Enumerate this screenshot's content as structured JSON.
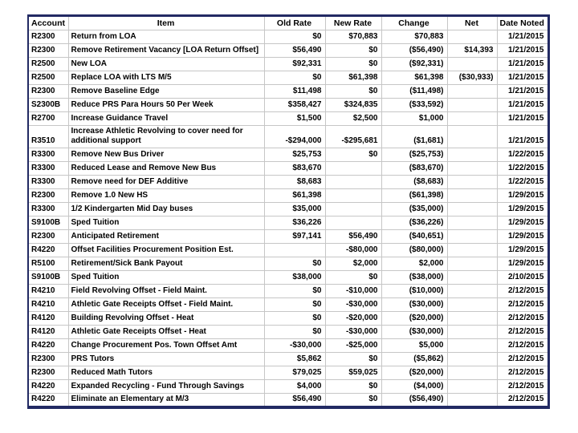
{
  "page": {
    "background": "#ffffff"
  },
  "table": {
    "title": "budget-adjustments-spreadsheet",
    "frame_color": "#222a63",
    "grid_color": "#c6c6c6",
    "text_color": "#000000",
    "negative_color": "#c00000",
    "columns": [
      {
        "key": "account",
        "label": "Account",
        "align": "left"
      },
      {
        "key": "item",
        "label": "Item",
        "align": "left"
      },
      {
        "key": "old_rate",
        "label": "Old Rate",
        "align": "right"
      },
      {
        "key": "new_rate",
        "label": "New Rate",
        "align": "right"
      },
      {
        "key": "change",
        "label": "Change",
        "align": "right"
      },
      {
        "key": "net",
        "label": "Net",
        "align": "right"
      },
      {
        "key": "date_noted",
        "label": "Date Noted",
        "align": "right"
      }
    ],
    "rows": [
      {
        "account": "R2300",
        "item": "Return from LOA",
        "old_rate": "$0",
        "new_rate": "$70,883",
        "change": "$70,883",
        "net": "",
        "date_noted": "1/21/2015"
      },
      {
        "account": "R2300",
        "item": "Remove Retirement Vacancy [LOA Return Offset]",
        "old_rate": "$56,490",
        "new_rate": "$0",
        "change": "($56,490)",
        "net": "$14,393",
        "date_noted": "1/21/2015"
      },
      {
        "account": "R2500",
        "item": "New LOA",
        "old_rate": "$92,331",
        "new_rate": "$0",
        "change": "($92,331)",
        "net": "",
        "date_noted": "1/21/2015"
      },
      {
        "account": "R2500",
        "item": "Replace LOA with LTS M/5",
        "old_rate": "$0",
        "new_rate": "$61,398",
        "change": "$61,398",
        "net": "($30,933)",
        "date_noted": "1/21/2015"
      },
      {
        "account": "R2300",
        "item": "Remove Baseline Edge",
        "old_rate": "$11,498",
        "new_rate": "$0",
        "change": "($11,498)",
        "net": "",
        "date_noted": "1/21/2015"
      },
      {
        "account": "S2300B",
        "item": "Reduce PRS Para Hours 50 Per Week",
        "old_rate": "$358,427",
        "new_rate": "$324,835",
        "change": "($33,592)",
        "net": "",
        "date_noted": "1/21/2015"
      },
      {
        "account": "R2700",
        "item": "Increase Guidance Travel",
        "old_rate": "$1,500",
        "new_rate": "$2,500",
        "change": "$1,000",
        "net": "",
        "date_noted": "1/21/2015"
      },
      {
        "account": "R3510",
        "item": "Increase Athletic Revolving to cover need for additional support",
        "old_rate": "-$294,000",
        "new_rate": "-$295,681",
        "change": "($1,681)",
        "net": "",
        "date_noted": "1/21/2015"
      },
      {
        "account": "R3300",
        "item": "Remove New Bus Driver",
        "old_rate": "$25,753",
        "new_rate": "$0",
        "change": "($25,753)",
        "net": "",
        "date_noted": "1/22/2015"
      },
      {
        "account": "R3300",
        "item": "Reduced Lease and Remove New Bus",
        "old_rate": "$83,670",
        "new_rate": "",
        "change": "($83,670)",
        "net": "",
        "date_noted": "1/22/2015"
      },
      {
        "account": "R3300",
        "item": "Remove need for DEF Additive",
        "old_rate": "$8,683",
        "new_rate": "",
        "change": "($8,683)",
        "net": "",
        "date_noted": "1/22/2015"
      },
      {
        "account": "R2300",
        "item": "Remove 1.0 New HS",
        "old_rate": "$61,398",
        "new_rate": "",
        "change": "($61,398)",
        "net": "",
        "date_noted": "1/29/2015"
      },
      {
        "account": "R3300",
        "item": "1/2 Kindergarten Mid Day buses",
        "old_rate": "$35,000",
        "new_rate": "",
        "change": "($35,000)",
        "net": "",
        "date_noted": "1/29/2015"
      },
      {
        "account": "S9100B",
        "item": "Sped Tuition",
        "old_rate": "$36,226",
        "new_rate": "",
        "change": "($36,226)",
        "net": "",
        "date_noted": "1/29/2015"
      },
      {
        "account": "R2300",
        "item": "Anticipated Retirement",
        "old_rate": "$97,141",
        "new_rate": "$56,490",
        "change": "($40,651)",
        "net": "",
        "date_noted": "1/29/2015"
      },
      {
        "account": "R4220",
        "item": "Offset Facilities Procurement Position Est.",
        "old_rate": "",
        "new_rate": "-$80,000",
        "change": "($80,000)",
        "net": "",
        "date_noted": "1/29/2015"
      },
      {
        "account": "R5100",
        "item": "Retirement/Sick Bank Payout",
        "old_rate": "$0",
        "new_rate": "$2,000",
        "change": "$2,000",
        "net": "",
        "date_noted": "1/29/2015"
      },
      {
        "account": "S9100B",
        "item": "Sped Tuition",
        "old_rate": "$38,000",
        "new_rate": "$0",
        "change": "($38,000)",
        "net": "",
        "date_noted": "2/10/2015"
      },
      {
        "account": "R4210",
        "item": "Field Revolving Offset - Field Maint.",
        "old_rate": "$0",
        "new_rate": "-$10,000",
        "change": "($10,000)",
        "net": "",
        "date_noted": "2/12/2015"
      },
      {
        "account": "R4210",
        "item": "Athletic Gate Receipts Offset - Field Maint.",
        "old_rate": "$0",
        "new_rate": "-$30,000",
        "change": "($30,000)",
        "net": "",
        "date_noted": "2/12/2015"
      },
      {
        "account": "R4120",
        "item": "Building Revolving Offset - Heat",
        "old_rate": "$0",
        "new_rate": "-$20,000",
        "change": "($20,000)",
        "net": "",
        "date_noted": "2/12/2015"
      },
      {
        "account": "R4120",
        "item": "Athletic Gate Receipts Offset - Heat",
        "old_rate": "$0",
        "new_rate": "-$30,000",
        "change": "($30,000)",
        "net": "",
        "date_noted": "2/12/2015"
      },
      {
        "account": "R4220",
        "item": "Change Procurement Pos. Town Offset Amt",
        "old_rate": "-$30,000",
        "new_rate": "-$25,000",
        "change": "$5,000",
        "net": "",
        "date_noted": "2/12/2015"
      },
      {
        "account": "R2300",
        "item": "PRS Tutors",
        "old_rate": "$5,862",
        "new_rate": "$0",
        "change": "($5,862)",
        "net": "",
        "date_noted": "2/12/2015"
      },
      {
        "account": "R2300",
        "item": "Reduced Math Tutors",
        "old_rate": "$79,025",
        "new_rate": "$59,025",
        "change": "($20,000)",
        "net": "",
        "date_noted": "2/12/2015"
      },
      {
        "account": "R4220",
        "item": "Expanded Recycling - Fund Through Savings",
        "old_rate": "$4,000",
        "new_rate": "$0",
        "change": "($4,000)",
        "net": "",
        "date_noted": "2/12/2015"
      },
      {
        "account": "R4220",
        "item": "Eliminate an Elementary at M/3",
        "old_rate": "$56,490",
        "new_rate": "$0",
        "change": "($56,490)",
        "net": "",
        "date_noted": "2/12/2015"
      }
    ]
  }
}
